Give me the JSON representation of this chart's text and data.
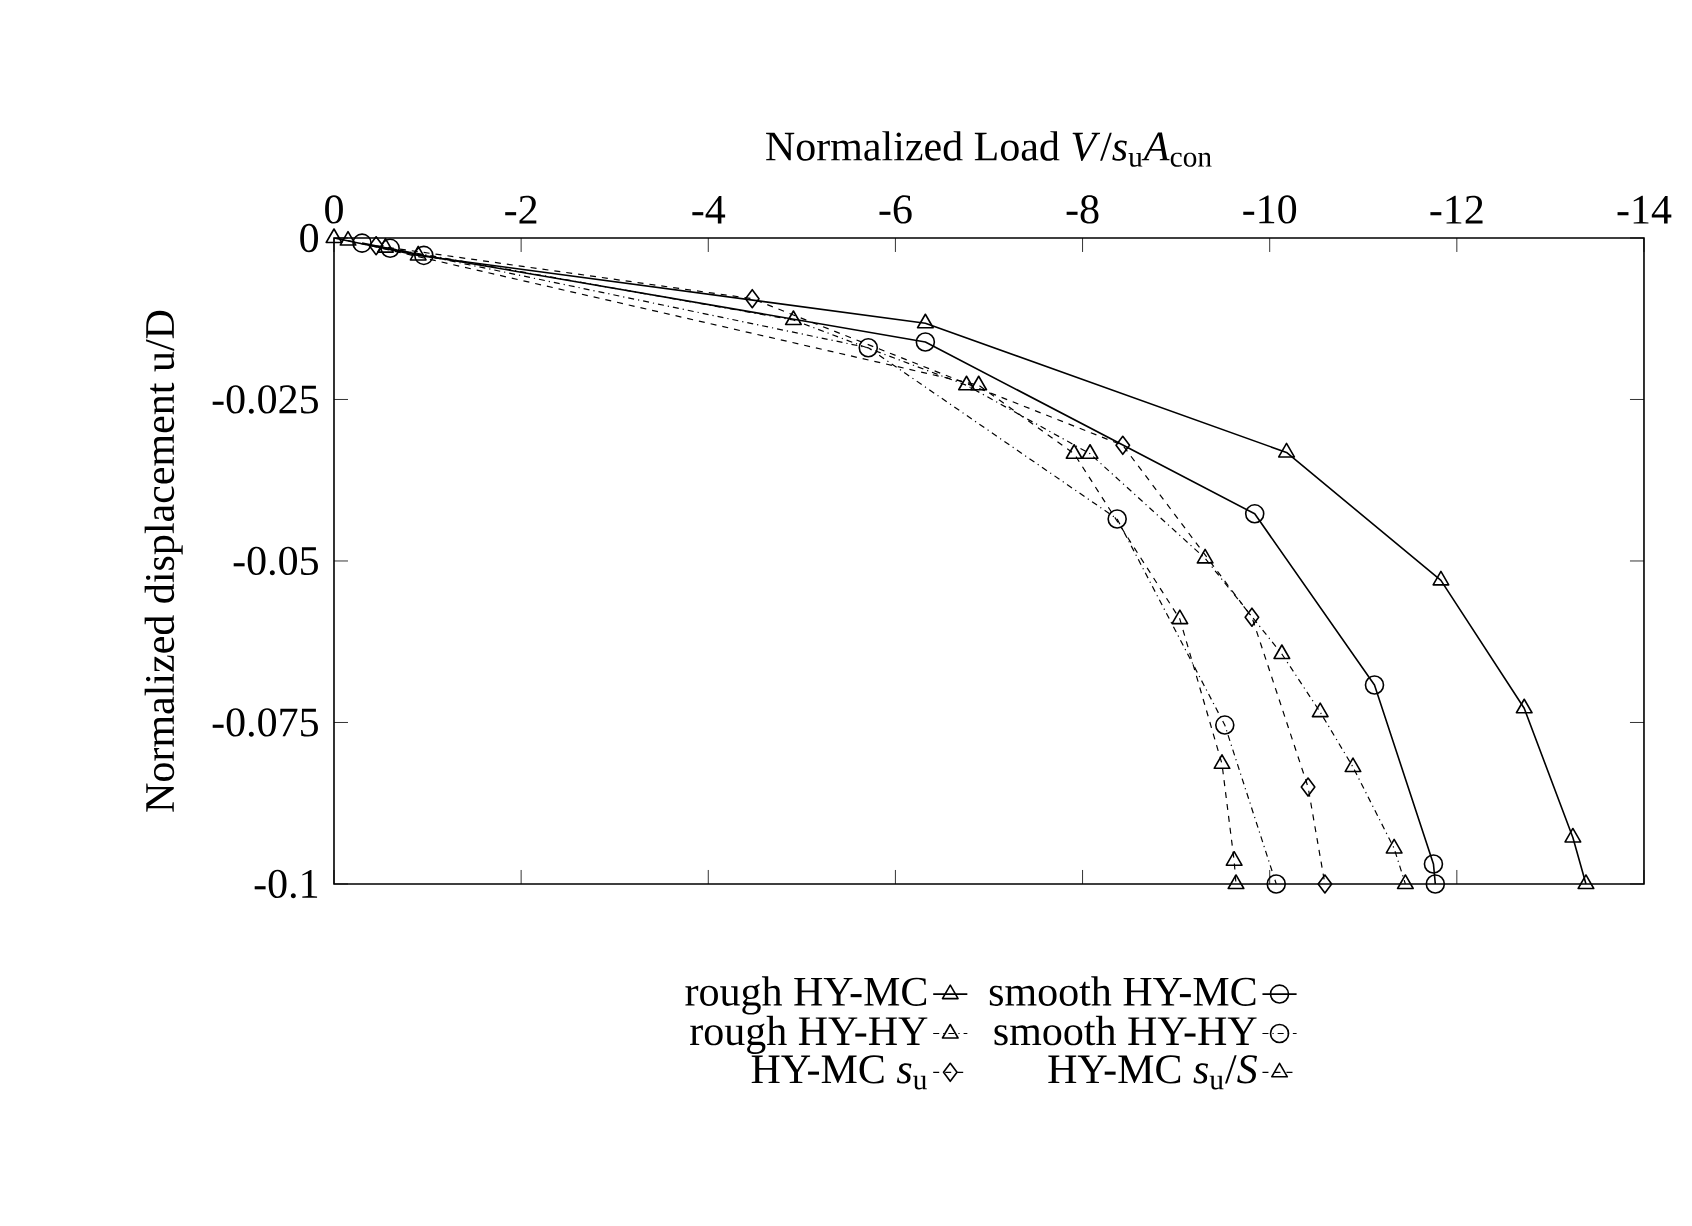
{
  "chart_data": {
    "type": "line",
    "xlabel": "Normalized Load *V*/*s*$_{u}$*A*$_{con}$",
    "ylabel": "Normalized displacement u/D",
    "xlim": [
      0,
      -14
    ],
    "ylim": [
      -0.1,
      0
    ],
    "xticks": [
      0,
      -2,
      -4,
      -6,
      -8,
      -10,
      -12,
      -14
    ],
    "yticks": [
      0,
      -0.025,
      -0.05,
      -0.075,
      -0.1
    ],
    "legend": "bottom",
    "grid": false,
    "series": [
      {
        "name": "rough HY-MC",
        "color": "#000000",
        "marker": "triangle",
        "line_style": "solid",
        "x": [
          0,
          -0.9,
          -6.32,
          -10.18,
          -11.83,
          -12.72,
          -13.24,
          -13.38
        ],
        "values": [
          0,
          -0.0027,
          -0.0132,
          -0.0332,
          -0.053,
          -0.0728,
          -0.0928,
          -0.1
        ]
      },
      {
        "name": "smooth HY-MC",
        "color": "#000000",
        "marker": "circle",
        "line_style": "solid",
        "x": [
          -0.3,
          -0.96,
          -6.32,
          -9.84,
          -11.12,
          -11.75,
          -11.77
        ],
        "values": [
          -0.0008,
          -0.0027,
          -0.0161,
          -0.0427,
          -0.0692,
          -0.0969,
          -0.1
        ]
      },
      {
        "name": "rough HY-HY",
        "color": "#000000",
        "marker": "triangle",
        "line_style": "dotted",
        "x": [
          -0.55,
          -4.91,
          -6.76,
          -8.08,
          -9.31,
          -10.13,
          -10.54,
          -10.89,
          -11.33,
          -11.45
        ],
        "values": [
          -0.0015,
          -0.0127,
          -0.0228,
          -0.0334,
          -0.0496,
          -0.0644,
          -0.0734,
          -0.0819,
          -0.0945,
          -0.1
        ]
      },
      {
        "name": "smooth HY-HY",
        "color": "#000000",
        "marker": "circle",
        "line_style": "dotted",
        "x": [
          -0.6,
          -5.71,
          -8.37,
          -9.52,
          -10.07
        ],
        "values": [
          -0.0016,
          -0.017,
          -0.0435,
          -0.0754,
          -0.1
        ]
      },
      {
        "name": "HY-MC *s*$_{u}$",
        "color": "#000000",
        "marker": "diamond",
        "line_style": "dashed",
        "x": [
          -0.45,
          -4.47,
          -8.43,
          -9.81,
          -10.41,
          -10.59
        ],
        "values": [
          -0.0012,
          -0.0094,
          -0.0321,
          -0.0587,
          -0.085,
          -0.1
        ]
      },
      {
        "name": "HY-MC *s*$_{u}$/*S*",
        "color": "#000000",
        "marker": "triangle",
        "line_style": "dashed",
        "x": [
          -0.15,
          -6.89,
          -7.91,
          -9.04,
          -9.49,
          -9.62,
          -9.64
        ],
        "values": [
          -0.0004,
          -0.0228,
          -0.0334,
          -0.059,
          -0.0814,
          -0.0964,
          -0.1
        ]
      }
    ]
  }
}
